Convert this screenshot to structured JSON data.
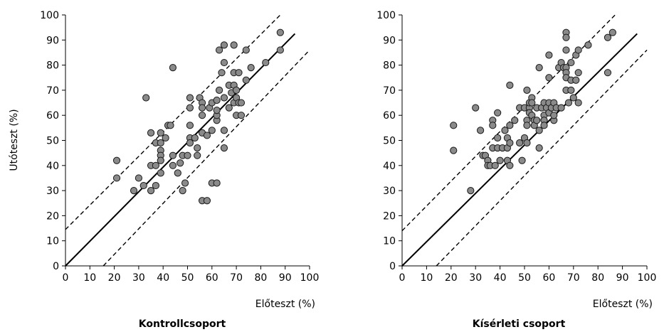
{
  "chart_data": [
    {
      "type": "scatter",
      "title": "Kontrollcsoport",
      "xlabel": "Előteszt (%)",
      "ylabel": "Utóteszt (%)",
      "xlim": [
        0,
        100
      ],
      "ylim": [
        0,
        100
      ],
      "xticks": [
        0,
        10,
        20,
        30,
        40,
        50,
        60,
        70,
        80,
        90,
        100
      ],
      "yticks": [
        0,
        10,
        20,
        30,
        40,
        50,
        60,
        70,
        80,
        90,
        100
      ],
      "grid": false,
      "lines": [
        {
          "style": "solid",
          "x": [
            0,
            94
          ],
          "y": [
            0,
            92.5
          ]
        },
        {
          "style": "dashed",
          "x": [
            0,
            88
          ],
          "y": [
            14.5,
            100
          ]
        },
        {
          "style": "dashed",
          "x": [
            15.5,
            100
          ],
          "y": [
            0,
            86
          ]
        }
      ],
      "points": [
        [
          21,
          42
        ],
        [
          21,
          35
        ],
        [
          28,
          30
        ],
        [
          30,
          35
        ],
        [
          32,
          32
        ],
        [
          33,
          67
        ],
        [
          35,
          53
        ],
        [
          35,
          40
        ],
        [
          35,
          30
        ],
        [
          37,
          40
        ],
        [
          37,
          49
        ],
        [
          37,
          32
        ],
        [
          39,
          53
        ],
        [
          39,
          49
        ],
        [
          39,
          46
        ],
        [
          39,
          44
        ],
        [
          39,
          42
        ],
        [
          39,
          37
        ],
        [
          41,
          51
        ],
        [
          42,
          56
        ],
        [
          43,
          56
        ],
        [
          44,
          79
        ],
        [
          44,
          44
        ],
        [
          44,
          40
        ],
        [
          46,
          37
        ],
        [
          47,
          41
        ],
        [
          48,
          30
        ],
        [
          48,
          44
        ],
        [
          49,
          33
        ],
        [
          50,
          44
        ],
        [
          51,
          67
        ],
        [
          51,
          63
        ],
        [
          51,
          56
        ],
        [
          51,
          51
        ],
        [
          51,
          49
        ],
        [
          53,
          51
        ],
        [
          54,
          47
        ],
        [
          54,
          44
        ],
        [
          55,
          67
        ],
        [
          56,
          65
        ],
        [
          56,
          63
        ],
        [
          56,
          60
        ],
        [
          56,
          53
        ],
        [
          56,
          26
        ],
        [
          58,
          26
        ],
        [
          58,
          52
        ],
        [
          59,
          63
        ],
        [
          60,
          33
        ],
        [
          60,
          54
        ],
        [
          60,
          65
        ],
        [
          62,
          33
        ],
        [
          62,
          58
        ],
        [
          62,
          60
        ],
        [
          62,
          62
        ],
        [
          62,
          66
        ],
        [
          63,
          86
        ],
        [
          63,
          70
        ],
        [
          64,
          77
        ],
        [
          65,
          88
        ],
        [
          65,
          81
        ],
        [
          65,
          67
        ],
        [
          65,
          54
        ],
        [
          65,
          47
        ],
        [
          67,
          72
        ],
        [
          67,
          63
        ],
        [
          68,
          69
        ],
        [
          69,
          88
        ],
        [
          69,
          72
        ],
        [
          69,
          65
        ],
        [
          69,
          77
        ],
        [
          70,
          70
        ],
        [
          70,
          67
        ],
        [
          70,
          60
        ],
        [
          71,
          65
        ],
        [
          71,
          77
        ],
        [
          72,
          65
        ],
        [
          72,
          60
        ],
        [
          74,
          86
        ],
        [
          74,
          74
        ],
        [
          76,
          79
        ],
        [
          82,
          81
        ],
        [
          88,
          93
        ],
        [
          88,
          86
        ]
      ]
    },
    {
      "type": "scatter",
      "title": "Kísérleti csoport",
      "xlabel": "Előteszt (%)",
      "ylabel": "",
      "xlim": [
        0,
        100
      ],
      "ylim": [
        0,
        100
      ],
      "xticks": [
        0,
        10,
        20,
        30,
        40,
        50,
        60,
        70,
        80,
        90,
        100
      ],
      "yticks": [
        0,
        10,
        20,
        30,
        40,
        50,
        60,
        70,
        80,
        90,
        100
      ],
      "grid": false,
      "lines": [
        {
          "style": "solid",
          "x": [
            0,
            96
          ],
          "y": [
            0,
            92.5
          ]
        },
        {
          "style": "dashed",
          "x": [
            0,
            87
          ],
          "y": [
            14,
            100
          ]
        },
        {
          "style": "dashed",
          "x": [
            14,
            100
          ],
          "y": [
            0,
            86
          ]
        }
      ],
      "points": [
        [
          21,
          56
        ],
        [
          21,
          46
        ],
        [
          28,
          30
        ],
        [
          30,
          63
        ],
        [
          32,
          54
        ],
        [
          33,
          44
        ],
        [
          34,
          44
        ],
        [
          35,
          42
        ],
        [
          35,
          40
        ],
        [
          36,
          40
        ],
        [
          37,
          58
        ],
        [
          37,
          56
        ],
        [
          37,
          47
        ],
        [
          38,
          40
        ],
        [
          39,
          61
        ],
        [
          39,
          51
        ],
        [
          39,
          47
        ],
        [
          40,
          42
        ],
        [
          41,
          47
        ],
        [
          42,
          54
        ],
        [
          43,
          51
        ],
        [
          43,
          47
        ],
        [
          43,
          42
        ],
        [
          44,
          72
        ],
        [
          44,
          56
        ],
        [
          44,
          49
        ],
        [
          44,
          40
        ],
        [
          46,
          58
        ],
        [
          48,
          63
        ],
        [
          48,
          49
        ],
        [
          49,
          42
        ],
        [
          50,
          63
        ],
        [
          50,
          51
        ],
        [
          51,
          70
        ],
        [
          51,
          58
        ],
        [
          51,
          56
        ],
        [
          51,
          49
        ],
        [
          52,
          63
        ],
        [
          52,
          61
        ],
        [
          52,
          65
        ],
        [
          53,
          67
        ],
        [
          53,
          65
        ],
        [
          53,
          60
        ],
        [
          54,
          58
        ],
        [
          54,
          56
        ],
        [
          55,
          63
        ],
        [
          55,
          58
        ],
        [
          56,
          79
        ],
        [
          56,
          54
        ],
        [
          56,
          47
        ],
        [
          57,
          63
        ],
        [
          58,
          65
        ],
        [
          58,
          60
        ],
        [
          58,
          58
        ],
        [
          58,
          56
        ],
        [
          59,
          63
        ],
        [
          60,
          84
        ],
        [
          60,
          75
        ],
        [
          60,
          65
        ],
        [
          60,
          61
        ],
        [
          61,
          63
        ],
        [
          62,
          65
        ],
        [
          62,
          58
        ],
        [
          62,
          60
        ],
        [
          63,
          63
        ],
        [
          64,
          79
        ],
        [
          65,
          81
        ],
        [
          65,
          63
        ],
        [
          66,
          79
        ],
        [
          67,
          93
        ],
        [
          67,
          91
        ],
        [
          67,
          86
        ],
        [
          67,
          79
        ],
        [
          67,
          77
        ],
        [
          67,
          75
        ],
        [
          67,
          70
        ],
        [
          68,
          65
        ],
        [
          69,
          81
        ],
        [
          69,
          74
        ],
        [
          69,
          70
        ],
        [
          70,
          67
        ],
        [
          71,
          84
        ],
        [
          71,
          74
        ],
        [
          72,
          86
        ],
        [
          72,
          77
        ],
        [
          72,
          65
        ],
        [
          76,
          88
        ],
        [
          84,
          91
        ],
        [
          84,
          77
        ],
        [
          86,
          93
        ]
      ]
    }
  ]
}
